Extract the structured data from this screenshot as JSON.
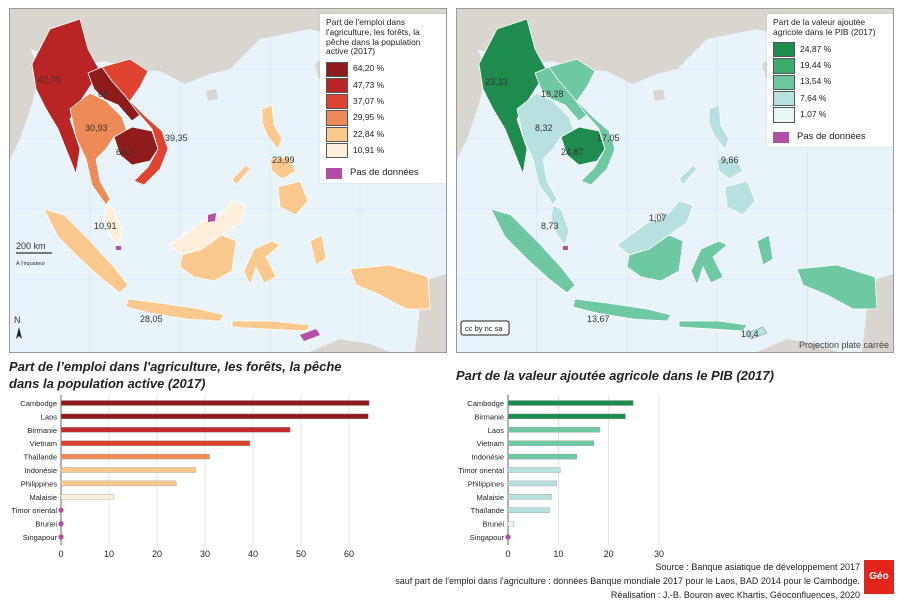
{
  "map_left": {
    "legend_title": "Part de l'emploi dans l'agriculture, les forêts, la pêche dans la population active (2017)",
    "legend_classes": [
      {
        "label": "64,20 %",
        "color": "#8f1b1b"
      },
      {
        "label": "47,73 %",
        "color": "#b92424"
      },
      {
        "label": "37,07 %",
        "color": "#e0432f"
      },
      {
        "label": "29,95 %",
        "color": "#ee8a57"
      },
      {
        "label": "22,84 %",
        "color": "#fbc98e"
      },
      {
        "label": "10,91 %",
        "color": "#fdefd9"
      }
    ],
    "no_data_label": "Pas de données",
    "labels": {
      "birmanie": "47,73",
      "laos": "64",
      "thailande": "30,93",
      "cambodge": "64,2",
      "vietnam": "39,35",
      "philippines": "23,99",
      "malaisie": "10,91",
      "indonesie": "28,05"
    },
    "scale_label": "200 km",
    "scale_note": "À l'équateur",
    "north_label": "N"
  },
  "map_right": {
    "legend_title": "Part de la valeur ajoutée agricole dans le PIB (2017)",
    "legend_classes": [
      {
        "label": "24,87 %",
        "color": "#1e8c4c"
      },
      {
        "label": "19,44 %",
        "color": "#3cab6c"
      },
      {
        "label": "13,54 %",
        "color": "#6ec9a3"
      },
      {
        "label": "7,64 %",
        "color": "#b6e1de"
      },
      {
        "label": "1,07 %",
        "color": "#e9f6f4"
      }
    ],
    "no_data_label": "Pas de données",
    "labels": {
      "birmanie": "23,33",
      "laos": "18,28",
      "thailande": "8,32",
      "cambodge": "24,87",
      "vietnam": "17,05",
      "philippines": "9,66",
      "brunei": "1,07",
      "malaisie": "8,73",
      "indonesie": "13,67",
      "timor": "10,4"
    },
    "projection_label": "Projection plate carrée",
    "license_label": "cc by nc sa"
  },
  "chart_data": [
    {
      "type": "bar",
      "title": "Part de l’emploi dans l'agriculture, les forêts, la pêche dans la population active (2017)",
      "categories": [
        "Cambodge",
        "Laos",
        "Birmanie",
        "Vietnam",
        "Thaïlande",
        "Indonésie",
        "Philippines",
        "Malaisie",
        "Timor oriental",
        "Brunei",
        "Singapour"
      ],
      "values": [
        64.2,
        64,
        47.73,
        39.35,
        30.93,
        28.05,
        23.99,
        10.91,
        0,
        0,
        0
      ],
      "colors": [
        "#8f1b1b",
        "#8f1b1b",
        "#c22b2b",
        "#d9412d",
        "#ee8a57",
        "#fbc98e",
        "#fbc98e",
        "#fdefd9",
        "#b04fa4",
        "#b04fa4",
        "#b04fa4"
      ],
      "no_data": [
        false,
        false,
        false,
        false,
        false,
        false,
        false,
        false,
        true,
        true,
        true
      ],
      "xlim": [
        0,
        65
      ],
      "ticks": [
        0,
        10,
        20,
        30,
        40,
        50,
        60
      ]
    },
    {
      "type": "bar",
      "title": "Part de la valeur ajoutée agricole dans le PIB (2017)",
      "categories": [
        "Cambodge",
        "Birmanie",
        "Laos",
        "Vietnam",
        "Indonésie",
        "Timor oriental",
        "Philippines",
        "Malaisie",
        "Thaïlande",
        "Brunei",
        "Singapour"
      ],
      "values": [
        24.87,
        23.33,
        18.28,
        17.05,
        13.67,
        10.4,
        9.66,
        8.73,
        8.32,
        1.07,
        0
      ],
      "colors": [
        "#1e8c4c",
        "#1e8c4c",
        "#6ec9a3",
        "#6ec9a3",
        "#6ec9a3",
        "#b6e1de",
        "#b6e1de",
        "#b6e1de",
        "#b6e1de",
        "#e9f6f4",
        "#b04fa4"
      ],
      "no_data": [
        false,
        false,
        false,
        false,
        false,
        false,
        false,
        false,
        false,
        false,
        true
      ],
      "xlim": [
        0,
        30
      ],
      "ticks": [
        0,
        10,
        20,
        30
      ]
    }
  ],
  "footer": {
    "line1": "Source : Banque asiatique de développement 2017",
    "line2": "sauf part de l'emploi dans l'agriculture : données Banque mondiale 2017 pour le Laos, BAD 2014 pour le Cambodge.",
    "line3": "Réalisation : J.-B. Bouron avec Khartis, Géoconfluences, 2020",
    "logo_text": "Géo"
  }
}
